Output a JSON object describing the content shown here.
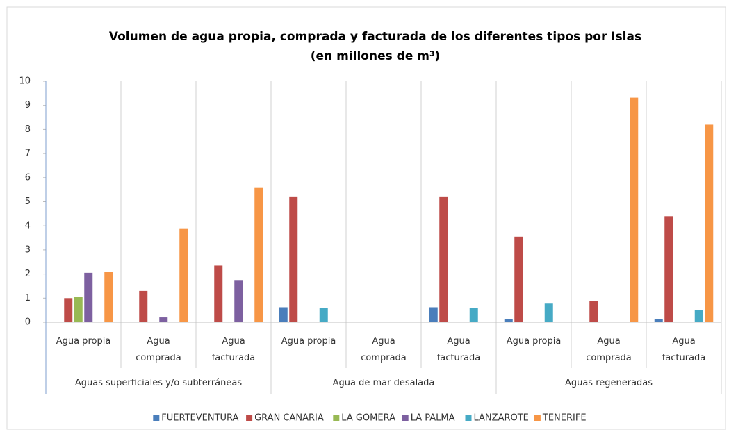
{
  "chart_data": {
    "type": "bar",
    "title": "Volumen de agua propia, comprada y facturada de los diferentes tipos por Islas",
    "subtitle": "(en millones de m³)",
    "groups": [
      "Aguas superficiales y/o subterráneas",
      "Agua de mar desalada",
      "Aguas regeneradas"
    ],
    "categories": [
      "Agua propia",
      "Agua comprada",
      "Agua facturada",
      "Agua propia",
      "Agua comprada",
      "Agua facturada",
      "Agua propia",
      "Agua comprada",
      "Agua facturada"
    ],
    "series": [
      {
        "name": "FUERTEVENTURA",
        "color": "#4a7ebb",
        "values": [
          0,
          0,
          0,
          0.62,
          0,
          0.62,
          0.12,
          0,
          0.12
        ]
      },
      {
        "name": "GRAN CANARIA",
        "color": "#be4b48",
        "values": [
          1.0,
          1.3,
          2.35,
          5.22,
          0,
          5.22,
          3.55,
          0.88,
          4.4
        ]
      },
      {
        "name": "LA GOMERA",
        "color": "#98b954",
        "values": [
          1.05,
          0,
          0,
          0,
          0,
          0,
          0,
          0,
          0
        ]
      },
      {
        "name": "LA PALMA",
        "color": "#7d60a0",
        "values": [
          2.05,
          0.2,
          1.75,
          0,
          0,
          0,
          0,
          0,
          0
        ]
      },
      {
        "name": "LANZAROTE",
        "color": "#46aac5",
        "values": [
          0,
          0,
          0,
          0.6,
          0,
          0.6,
          0.8,
          0,
          0.5
        ]
      },
      {
        "name": "TENERIFE",
        "color": "#f79646",
        "values": [
          2.1,
          3.9,
          5.6,
          0,
          0,
          0,
          0,
          9.32,
          8.2
        ]
      }
    ],
    "ylim": [
      0,
      10
    ],
    "yticks": [
      0,
      1,
      2,
      3,
      4,
      5,
      6,
      7,
      8,
      9,
      10
    ],
    "grid": false,
    "legend": "bottom"
  }
}
